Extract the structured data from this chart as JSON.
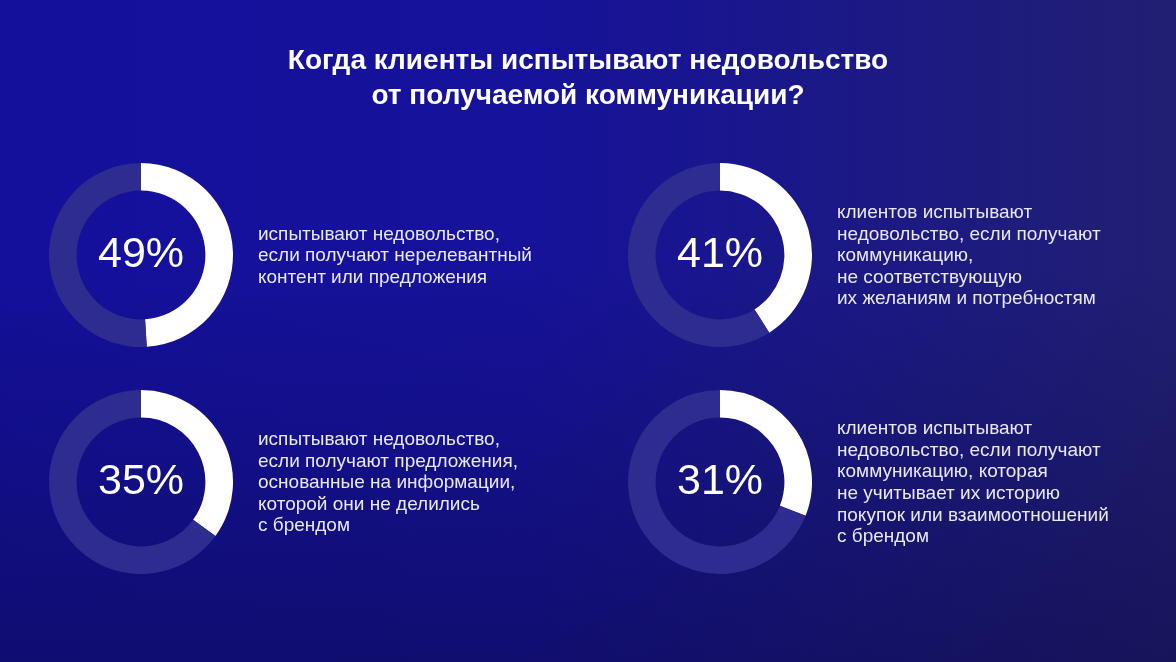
{
  "chart_data": [
    {
      "type": "donut",
      "title": "Когда клиенты испытывают недовольство\nот получаемой коммуникации?",
      "categories": [
        "испытывают недовольство,\nесли получают нерелевантный\nконтент или предложения",
        null
      ],
      "values": [
        49,
        51
      ],
      "colors": [
        "#ffffff",
        "#2e2c8e"
      ],
      "value_labels": [
        "49%",
        null
      ]
    },
    {
      "type": "donut",
      "categories": [
        "клиентов испытывают\nнедовольство, если получают\nкоммуникацию,\nне соответствующую\nих желаниям и потребностям",
        null
      ],
      "values": [
        41,
        59
      ],
      "colors": [
        "#ffffff",
        "#2e2c8e"
      ],
      "value_labels": [
        "41%",
        null
      ]
    },
    {
      "type": "donut",
      "categories": [
        "испытывают недовольство,\nесли получают предложения,\nоснованные на информации,\nкоторой они не делились\nс брендом",
        null
      ],
      "values": [
        35,
        65
      ],
      "colors": [
        "#ffffff",
        "#2e2c8e"
      ],
      "value_labels": [
        "35%",
        null
      ]
    },
    {
      "type": "donut",
      "categories": [
        "клиентов испытывают\nнедовольство, если получают\nкоммуникацию, которая\nне учитывает их историю\nпокупок или взаимоотношений\nс брендом",
        null
      ],
      "values": [
        31,
        69
      ],
      "colors": [
        "#ffffff",
        "#2e2c8e"
      ],
      "value_labels": [
        "31%",
        null
      ]
    }
  ]
}
